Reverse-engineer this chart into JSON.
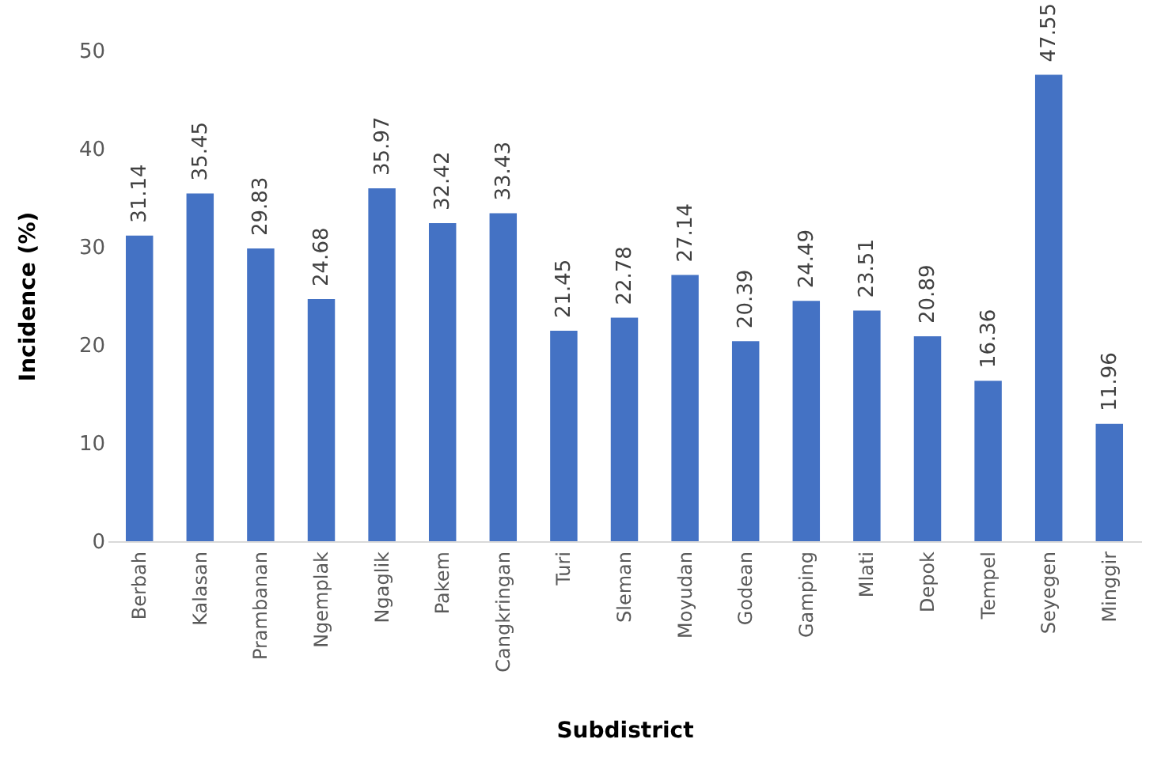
{
  "chart_data": {
    "type": "bar",
    "xlabel": "Subdistrict",
    "ylabel": "Incidence (%)",
    "categories": [
      "Berbah",
      "Kalasan",
      "Prambanan",
      "Ngemplak",
      "Ngaglik",
      "Pakem",
      "Cangkringan",
      "Turi",
      "Sleman",
      "Moyudan",
      "Godean",
      "Gamping",
      "Mlati",
      "Depok",
      "Tempel",
      "Seyegen",
      "Minggir"
    ],
    "values": [
      31.14,
      35.45,
      29.83,
      24.68,
      35.97,
      32.42,
      33.43,
      21.45,
      22.78,
      27.14,
      20.39,
      24.49,
      23.51,
      20.89,
      16.36,
      47.55,
      11.96
    ],
    "color": "#4472c4",
    "ylim": [
      0,
      50
    ],
    "yticks": [
      0,
      10,
      20,
      30,
      40,
      50
    ],
    "grid": false,
    "data_labels": true
  }
}
